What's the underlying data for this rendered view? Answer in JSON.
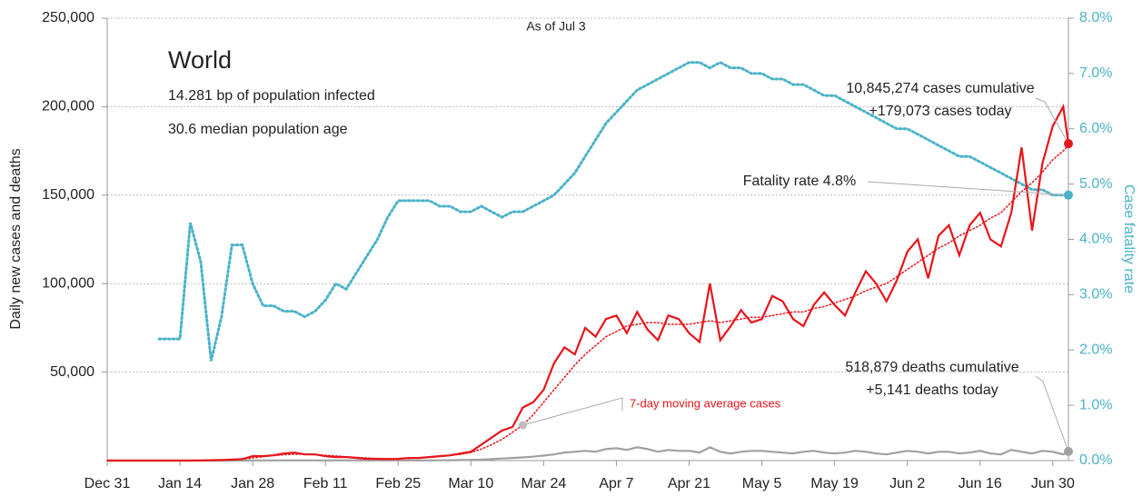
{
  "chart_data": {
    "type": "line",
    "title": "World",
    "subtitle": [
      "14.281 bp of population infected",
      "30.6 median population age"
    ],
    "annotations": [
      "As of Jul 3",
      "10,845,274 cases cumulative",
      "+179,073 cases today",
      "Fatality rate 4.8%",
      "518,879 deaths cumulative",
      "+5,141 deaths today"
    ],
    "y_label": "Daily new cases and deaths",
    "y2_label": "Case fatality rate",
    "xlim": [
      0,
      185
    ],
    "xticks": [
      {
        "value": 0,
        "label": "Dec 31"
      },
      {
        "value": 14,
        "label": "Jan 14"
      },
      {
        "value": 28,
        "label": "Jan 28"
      },
      {
        "value": 42,
        "label": "Feb 11"
      },
      {
        "value": 56,
        "label": "Feb 25"
      },
      {
        "value": 70,
        "label": "Mar 10"
      },
      {
        "value": 84,
        "label": "Mar 24"
      },
      {
        "value": 98,
        "label": "Apr 7"
      },
      {
        "value": 112,
        "label": "Apr 21"
      },
      {
        "value": 126,
        "label": "May 5"
      },
      {
        "value": 140,
        "label": "May 19"
      },
      {
        "value": 154,
        "label": "Jun 2"
      },
      {
        "value": 168,
        "label": "Jun 16"
      },
      {
        "value": 182,
        "label": "Jun 30"
      }
    ],
    "ylim": [
      0,
      250000
    ],
    "yticks": [
      {
        "value": 50000,
        "label": "50,000"
      },
      {
        "value": 100000,
        "label": "100,000"
      },
      {
        "value": 150000,
        "label": "150,000"
      },
      {
        "value": 200000,
        "label": "200,000"
      },
      {
        "value": 250000,
        "label": "250,000"
      }
    ],
    "y2lim": [
      0,
      8
    ],
    "y2ticks": [
      {
        "value": 0,
        "label": "0.0%"
      },
      {
        "value": 1,
        "label": "1.0%"
      },
      {
        "value": 2,
        "label": "2.0%"
      },
      {
        "value": 3,
        "label": "3.0%"
      },
      {
        "value": 4,
        "label": "4.0%"
      },
      {
        "value": 5,
        "label": "5.0%"
      },
      {
        "value": 6,
        "label": "6.0%"
      },
      {
        "value": 7,
        "label": "7.0%"
      },
      {
        "value": 8,
        "label": "8.0%"
      }
    ],
    "grid": true,
    "x": [
      0,
      2,
      4,
      6,
      8,
      10,
      12,
      14,
      16,
      18,
      20,
      22,
      24,
      26,
      28,
      30,
      32,
      34,
      36,
      38,
      40,
      42,
      44,
      46,
      48,
      50,
      52,
      54,
      56,
      58,
      60,
      62,
      64,
      66,
      68,
      70,
      72,
      74,
      76,
      78,
      80,
      82,
      84,
      86,
      88,
      90,
      92,
      94,
      96,
      98,
      100,
      102,
      104,
      106,
      108,
      110,
      112,
      114,
      116,
      118,
      120,
      122,
      124,
      126,
      128,
      130,
      132,
      134,
      136,
      138,
      140,
      142,
      144,
      146,
      148,
      150,
      152,
      154,
      156,
      158,
      160,
      162,
      164,
      166,
      168,
      170,
      172,
      174,
      176,
      178,
      180,
      182,
      184,
      185
    ],
    "series": [
      {
        "color": "#e8141b",
        "style": "solid",
        "values": [
          0,
          0,
          0,
          0,
          0,
          0,
          0,
          0,
          0,
          100,
          200,
          300,
          500,
          800,
          2500,
          2500,
          3000,
          4000,
          4500,
          3500,
          3500,
          2500,
          2000,
          2000,
          1500,
          1000,
          1000,
          800,
          1000,
          1500,
          1500,
          2000,
          2500,
          3000,
          4000,
          5000,
          9000,
          13000,
          17000,
          19000,
          30000,
          33000,
          40000,
          55000,
          64000,
          60000,
          75000,
          70000,
          80000,
          82000,
          72000,
          84000,
          74000,
          68000,
          82000,
          80000,
          72000,
          67000,
          100000,
          68000,
          76000,
          85000,
          78000,
          80000,
          93000,
          90000,
          80000,
          76000,
          88000,
          95000,
          88000,
          82000,
          95000,
          107000,
          100000,
          90000,
          102000,
          118000,
          125000,
          103000,
          127000,
          133000,
          116000,
          133000,
          140000,
          125000,
          121000,
          140000,
          177000,
          130000,
          168000,
          189000,
          200000,
          179073
        ]
      },
      {
        "name": "7-day moving average cases",
        "color": "#e8141b",
        "style": "dotted",
        "values": [
          0,
          0,
          0,
          0,
          0,
          0,
          0,
          0,
          50,
          100,
          200,
          300,
          500,
          900,
          1500,
          2200,
          2800,
          3300,
          3600,
          3600,
          3400,
          3000,
          2600,
          2200,
          1800,
          1500,
          1200,
          1100,
          1100,
          1200,
          1500,
          1800,
          2300,
          2900,
          3500,
          4500,
          6500,
          9000,
          12000,
          16000,
          20000,
          26000,
          33000,
          40000,
          47000,
          54000,
          60000,
          65000,
          70000,
          73000,
          76000,
          77000,
          78000,
          78000,
          77000,
          77000,
          77000,
          78000,
          79000,
          78000,
          79000,
          80000,
          81000,
          81000,
          82000,
          83000,
          84000,
          84000,
          86000,
          87000,
          89000,
          91000,
          93000,
          96000,
          98000,
          100000,
          104000,
          108000,
          112000,
          116000,
          120000,
          123000,
          127000,
          130000,
          133000,
          137000,
          140000,
          146000,
          152000,
          157000,
          163000,
          170000,
          175000,
          178000
        ]
      },
      {
        "color": "#a0a0a0",
        "style": "solid",
        "values": [
          0,
          0,
          0,
          0,
          0,
          0,
          0,
          0,
          0,
          0,
          0,
          0,
          50,
          50,
          80,
          100,
          100,
          100,
          100,
          100,
          100,
          100,
          80,
          80,
          80,
          80,
          80,
          80,
          80,
          80,
          100,
          100,
          150,
          200,
          300,
          400,
          500,
          800,
          1200,
          1500,
          1800,
          2200,
          2800,
          3500,
          4500,
          5000,
          5500,
          5000,
          6500,
          7000,
          6000,
          7500,
          6500,
          5000,
          6000,
          5500,
          5500,
          4500,
          7500,
          5000,
          4000,
          5000,
          5500,
          5500,
          5000,
          4500,
          4000,
          5000,
          5500,
          4500,
          4000,
          4500,
          5500,
          5000,
          4000,
          3500,
          4500,
          5500,
          5000,
          4000,
          5000,
          5000,
          4000,
          4500,
          5500,
          4000,
          3500,
          6000,
          5000,
          4000,
          5500,
          5000,
          3500,
          5141
        ]
      },
      {
        "color": "#4ab3c8",
        "style": "dotted",
        "axis": "y2",
        "values": [
          null,
          null,
          null,
          null,
          null,
          2.2,
          2.2,
          2.2,
          4.3,
          3.6,
          1.8,
          2.6,
          3.9,
          3.9,
          3.2,
          2.8,
          2.8,
          2.7,
          2.7,
          2.6,
          2.7,
          2.9,
          3.2,
          3.1,
          3.4,
          3.7,
          4.0,
          4.4,
          4.7,
          4.7,
          4.7,
          4.7,
          4.6,
          4.6,
          4.5,
          4.5,
          4.6,
          4.5,
          4.4,
          4.5,
          4.5,
          4.6,
          4.7,
          4.8,
          5.0,
          5.2,
          5.5,
          5.8,
          6.1,
          6.3,
          6.5,
          6.7,
          6.8,
          6.9,
          7.0,
          7.1,
          7.2,
          7.2,
          7.1,
          7.2,
          7.1,
          7.1,
          7.0,
          7.0,
          6.9,
          6.9,
          6.8,
          6.8,
          6.7,
          6.6,
          6.6,
          6.5,
          6.4,
          6.3,
          6.2,
          6.1,
          6.0,
          6.0,
          5.9,
          5.8,
          5.7,
          5.6,
          5.5,
          5.5,
          5.4,
          5.3,
          5.2,
          5.1,
          5.0,
          4.9,
          4.9,
          4.8,
          4.8,
          4.8
        ]
      }
    ]
  }
}
